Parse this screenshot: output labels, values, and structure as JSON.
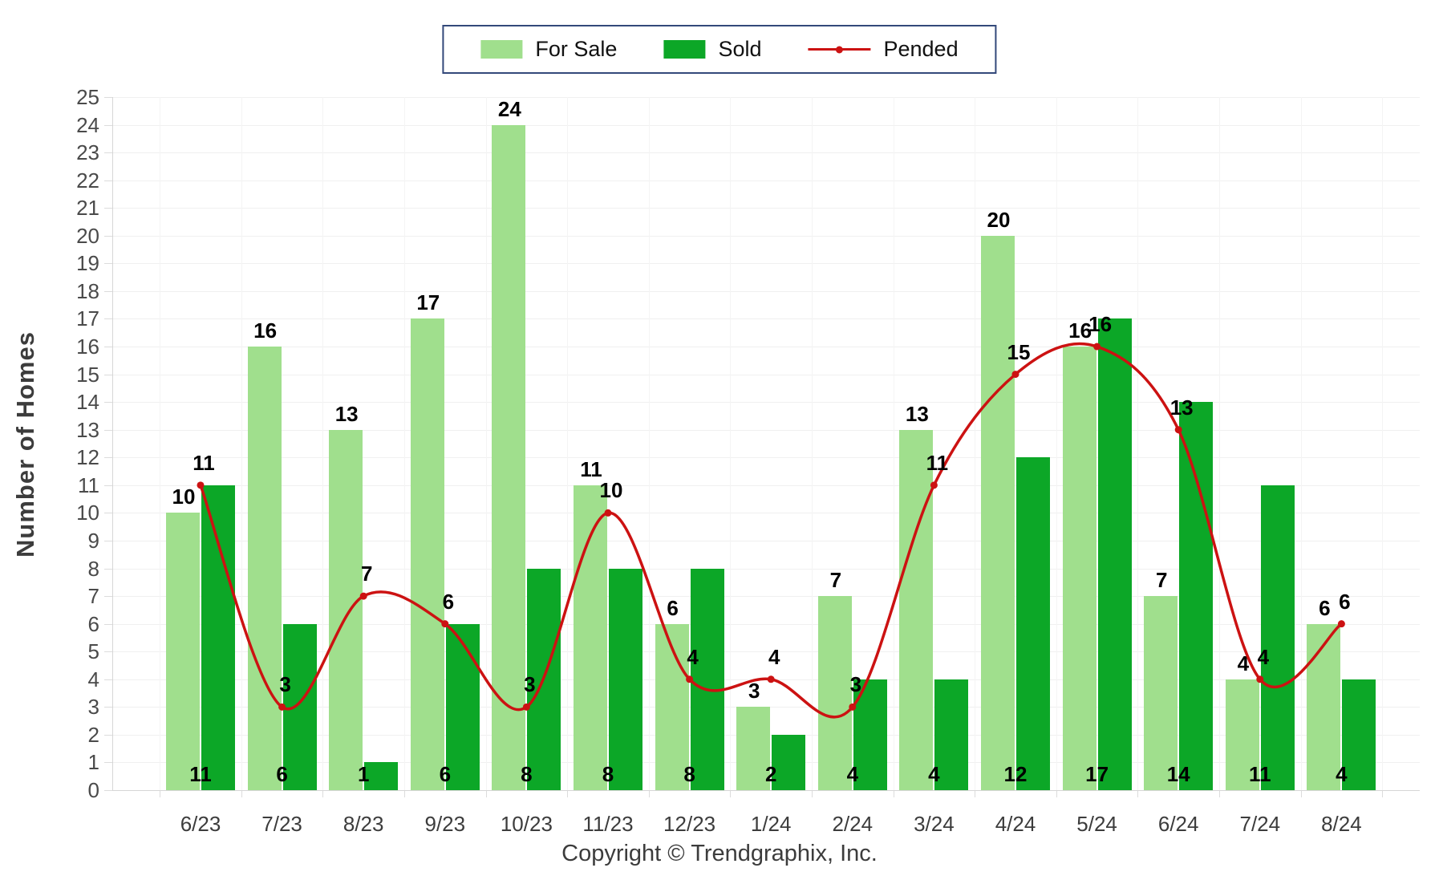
{
  "legend": {
    "items": [
      {
        "label": "For Sale",
        "swatch": "box",
        "color": "#a0df8d"
      },
      {
        "label": "Sold",
        "swatch": "box",
        "color": "#0ca727"
      },
      {
        "label": "Pended",
        "swatch": "line",
        "color": "#cc1212"
      }
    ],
    "border_color": "#33497a"
  },
  "footer": "Copyright © Trendgraphix, Inc.",
  "chart_data": {
    "type": "bar",
    "title": "",
    "xlabel": "",
    "ylabel": "Number of Homes",
    "categories": [
      "6/23",
      "7/23",
      "8/23",
      "9/23",
      "10/23",
      "11/23",
      "12/23",
      "1/24",
      "2/24",
      "3/24",
      "4/24",
      "5/24",
      "6/24",
      "7/24",
      "8/24"
    ],
    "series": [
      {
        "name": "For Sale",
        "type": "bar",
        "color": "#a0df8d",
        "values": [
          10,
          16,
          13,
          17,
          24,
          11,
          6,
          3,
          7,
          13,
          20,
          16,
          7,
          4,
          6
        ],
        "label_position": "above-bar"
      },
      {
        "name": "Sold",
        "type": "bar",
        "color": "#0ca727",
        "values": [
          11,
          6,
          1,
          6,
          8,
          8,
          8,
          2,
          4,
          4,
          12,
          17,
          14,
          11,
          4
        ],
        "label_position": "bar-bottom"
      },
      {
        "name": "Pended",
        "type": "line",
        "color": "#cc1212",
        "values": [
          11,
          3,
          7,
          6,
          3,
          10,
          4,
          4,
          3,
          11,
          15,
          16,
          13,
          4,
          6
        ],
        "label_position": "above-point"
      }
    ],
    "ylim": [
      0,
      25
    ],
    "yticks": [
      0,
      1,
      2,
      3,
      4,
      5,
      6,
      7,
      8,
      9,
      10,
      11,
      12,
      13,
      14,
      15,
      16,
      17,
      18,
      19,
      20,
      21,
      22,
      23,
      24,
      25
    ],
    "grid": true,
    "legend_position": "top-center"
  }
}
